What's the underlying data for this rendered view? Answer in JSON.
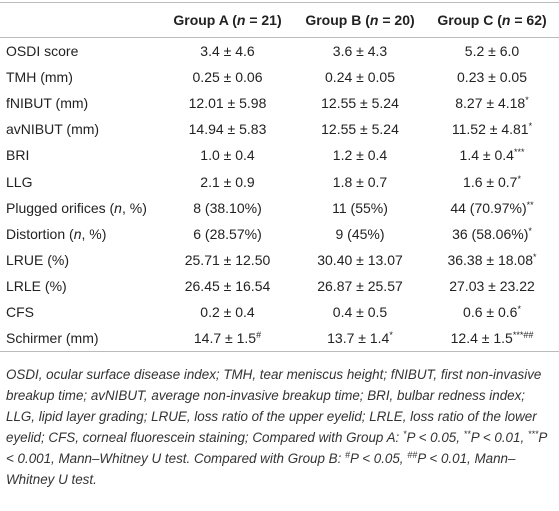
{
  "table": {
    "columns": [
      [
        {
          "text": "Group A ("
        },
        {
          "italic": "n"
        },
        {
          "text": " = 21)"
        }
      ],
      [
        {
          "text": "Group B ("
        },
        {
          "italic": "n"
        },
        {
          "text": " = 20)"
        }
      ],
      [
        {
          "text": "Group C ("
        },
        {
          "italic": "n"
        },
        {
          "text": " = 62)"
        }
      ]
    ],
    "rows": [
      {
        "label": [
          {
            "text": "OSDI score"
          }
        ],
        "cells": [
          [
            {
              "text": "3.4 ± 4.6"
            }
          ],
          [
            {
              "text": "3.6 ± 4.3"
            }
          ],
          [
            {
              "text": "5.2 ± 6.0"
            }
          ]
        ]
      },
      {
        "label": [
          {
            "text": "TMH (mm)"
          }
        ],
        "cells": [
          [
            {
              "text": "0.25 ± 0.06"
            }
          ],
          [
            {
              "text": "0.24 ± 0.05"
            }
          ],
          [
            {
              "text": "0.23 ± 0.05"
            }
          ]
        ]
      },
      {
        "label": [
          {
            "text": "fNIBUT (mm)"
          }
        ],
        "cells": [
          [
            {
              "text": "12.01 ± 5.98"
            }
          ],
          [
            {
              "text": "12.55 ± 5.24"
            }
          ],
          [
            {
              "text": "8.27 ± 4.18"
            },
            {
              "sup": "*"
            }
          ]
        ]
      },
      {
        "label": [
          {
            "text": "avNIBUT (mm)"
          }
        ],
        "cells": [
          [
            {
              "text": "14.94 ± 5.83"
            }
          ],
          [
            {
              "text": "12.55 ± 5.24"
            }
          ],
          [
            {
              "text": "11.52 ± 4.81"
            },
            {
              "sup": "*"
            }
          ]
        ]
      },
      {
        "label": [
          {
            "text": "BRI"
          }
        ],
        "cells": [
          [
            {
              "text": "1.0 ± 0.4"
            }
          ],
          [
            {
              "text": "1.2 ± 0.4"
            }
          ],
          [
            {
              "text": "1.4 ± 0.4"
            },
            {
              "sup": "***"
            }
          ]
        ]
      },
      {
        "label": [
          {
            "text": "LLG"
          }
        ],
        "cells": [
          [
            {
              "text": "2.1 ± 0.9"
            }
          ],
          [
            {
              "text": "1.8 ± 0.7"
            }
          ],
          [
            {
              "text": "1.6 ± 0.7"
            },
            {
              "sup": "*"
            }
          ]
        ]
      },
      {
        "label": [
          {
            "text": "Plugged orifices ("
          },
          {
            "italic": "n"
          },
          {
            "text": ", %)"
          }
        ],
        "cells": [
          [
            {
              "text": "8 (38.10%)"
            }
          ],
          [
            {
              "text": "11 (55%)"
            }
          ],
          [
            {
              "text": "44 (70.97%)"
            },
            {
              "sup": "**"
            }
          ]
        ]
      },
      {
        "label": [
          {
            "text": "Distortion ("
          },
          {
            "italic": "n"
          },
          {
            "text": ", %)"
          }
        ],
        "cells": [
          [
            {
              "text": "6 (28.57%)"
            }
          ],
          [
            {
              "text": "9 (45%)"
            }
          ],
          [
            {
              "text": "36 (58.06%)"
            },
            {
              "sup": "*"
            }
          ]
        ]
      },
      {
        "label": [
          {
            "text": "LRUE (%)"
          }
        ],
        "cells": [
          [
            {
              "text": "25.71 ± 12.50"
            }
          ],
          [
            {
              "text": "30.40 ± 13.07"
            }
          ],
          [
            {
              "text": "36.38 ± 18.08"
            },
            {
              "sup": "*"
            }
          ]
        ]
      },
      {
        "label": [
          {
            "text": "LRLE (%)"
          }
        ],
        "cells": [
          [
            {
              "text": "26.45 ± 16.54"
            }
          ],
          [
            {
              "text": "26.87 ± 25.57"
            }
          ],
          [
            {
              "text": "27.03 ± 23.22"
            }
          ]
        ]
      },
      {
        "label": [
          {
            "text": "CFS"
          }
        ],
        "cells": [
          [
            {
              "text": "0.2 ± 0.4"
            }
          ],
          [
            {
              "text": "0.4 ± 0.5"
            }
          ],
          [
            {
              "text": "0.6 ± 0.6"
            },
            {
              "sup": "*"
            }
          ]
        ]
      },
      {
        "label": [
          {
            "text": "Schirmer (mm)"
          }
        ],
        "cells": [
          [
            {
              "text": "14.7 ± 1.5"
            },
            {
              "sup": "#"
            }
          ],
          [
            {
              "text": "13.7 ± 1.4"
            },
            {
              "sup": "*"
            }
          ],
          [
            {
              "text": "12.4 ± 1.5"
            },
            {
              "sup": "***##"
            }
          ]
        ]
      }
    ],
    "footnote": [
      {
        "text": "OSDI, ocular surface disease index; TMH, tear meniscus height; fNIBUT, first non-invasive breakup time; avNIBUT, average non-invasive breakup time; BRI, bulbar redness index; LLG, lipid layer grading; LRUE, loss ratio of the upper eyelid; LRLE, loss ratio of the lower eyelid; CFS, corneal fluorescein staining; Compared with Group A: "
      },
      {
        "sup": "*"
      },
      {
        "text": "P < 0.05, "
      },
      {
        "sup": "**"
      },
      {
        "text": "P < 0.01, "
      },
      {
        "sup": "***"
      },
      {
        "text": "P < 0.001, Mann–Whitney U test. Compared with Group B: "
      },
      {
        "sup": "#"
      },
      {
        "text": "P < 0.05, "
      },
      {
        "sup": "##"
      },
      {
        "text": "P < 0.01, Mann–Whitney U test."
      }
    ]
  }
}
